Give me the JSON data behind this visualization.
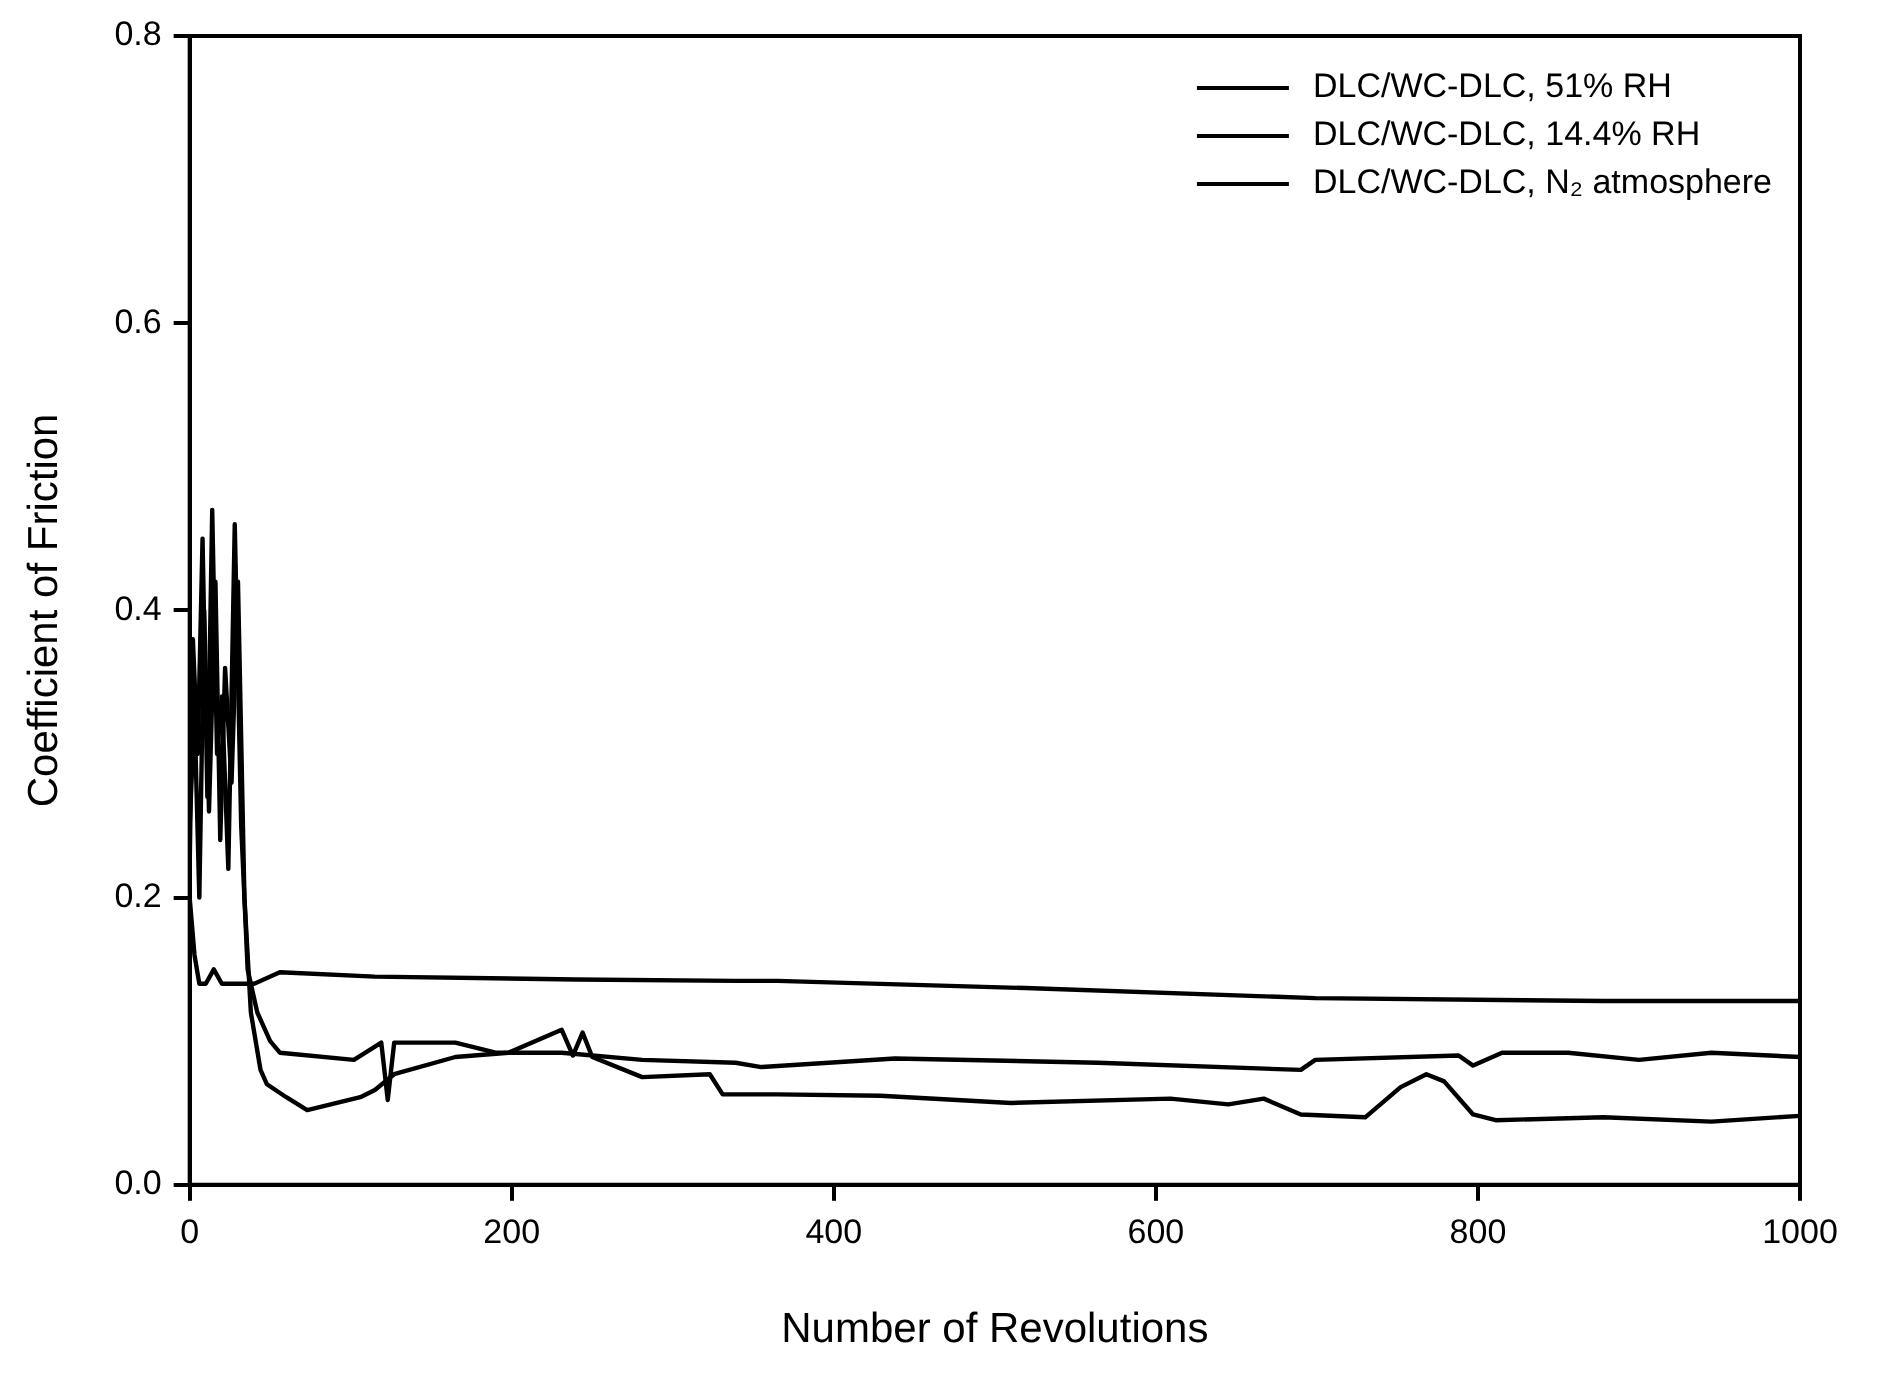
{
  "chart_data": {
    "type": "line",
    "xlabel": "Number of Revolutions",
    "ylabel": "Coefficient of Friction",
    "xlim": [
      0,
      1000
    ],
    "ylim": [
      0,
      0.8
    ],
    "xticks": [
      0,
      200,
      400,
      600,
      800,
      1000
    ],
    "yticks": [
      {
        "value": 0,
        "label": "0.0"
      },
      {
        "value": 0.2,
        "label": "0.2"
      },
      {
        "value": 0.4,
        "label": "0.4"
      },
      {
        "value": 0.6,
        "label": "0.6"
      },
      {
        "value": 0.8,
        "label": "0.8"
      }
    ],
    "grid": false,
    "legend": "top right",
    "marker": "none",
    "line_style": "solid",
    "series": [
      {
        "name": "DLC/WC-DLC, 51% RH",
        "color": "#000000",
        "x": [
          0,
          3,
          6,
          10,
          15,
          20,
          30,
          40,
          56,
          115,
          240,
          339,
          365,
          519,
          699,
          878,
          1000
        ],
        "values": [
          0.2,
          0.16,
          0.14,
          0.14,
          0.15,
          0.14,
          0.14,
          0.14,
          0.148,
          0.145,
          0.143,
          0.142,
          0.142,
          0.137,
          0.13,
          0.128,
          0.128
        ]
      },
      {
        "name": "DLC/WC-DLC, 14.4% RH",
        "color": "#000000",
        "x": [
          0,
          2,
          5,
          8,
          11,
          14,
          17,
          20,
          24,
          28,
          32,
          36,
          42,
          50,
          56,
          102,
          119,
          123,
          127,
          165,
          190,
          231,
          281,
          339,
          355,
          438,
          564,
          690,
          699,
          788,
          797,
          815,
          856,
          900,
          945,
          1000
        ],
        "values": [
          0.22,
          0.38,
          0.3,
          0.45,
          0.27,
          0.47,
          0.3,
          0.34,
          0.22,
          0.46,
          0.25,
          0.15,
          0.12,
          0.1,
          0.092,
          0.087,
          0.099,
          0.059,
          0.099,
          0.099,
          0.092,
          0.092,
          0.087,
          0.085,
          0.082,
          0.088,
          0.085,
          0.08,
          0.087,
          0.09,
          0.083,
          0.092,
          0.092,
          0.087,
          0.092,
          0.089
        ]
      },
      {
        "name": "DLC/WC-DLC, N₂ atmosphere",
        "color": "#000000",
        "x": [
          0,
          3,
          6,
          9,
          12,
          16,
          19,
          22,
          26,
          30,
          34,
          38,
          44,
          48,
          60,
          73,
          106,
          115,
          127,
          165,
          198,
          231,
          238,
          244,
          250,
          281,
          323,
          331,
          365,
          429,
          510,
          609,
          645,
          667,
          690,
          730,
          752,
          768,
          779,
          797,
          811,
          878,
          945,
          1000
        ],
        "values": [
          0.25,
          0.33,
          0.2,
          0.4,
          0.26,
          0.42,
          0.24,
          0.36,
          0.28,
          0.42,
          0.2,
          0.12,
          0.08,
          0.07,
          0.061,
          0.052,
          0.061,
          0.066,
          0.077,
          0.089,
          0.092,
          0.108,
          0.09,
          0.106,
          0.089,
          0.075,
          0.077,
          0.063,
          0.063,
          0.062,
          0.057,
          0.06,
          0.056,
          0.06,
          0.049,
          0.047,
          0.068,
          0.077,
          0.072,
          0.049,
          0.045,
          0.047,
          0.044,
          0.048
        ]
      }
    ]
  }
}
